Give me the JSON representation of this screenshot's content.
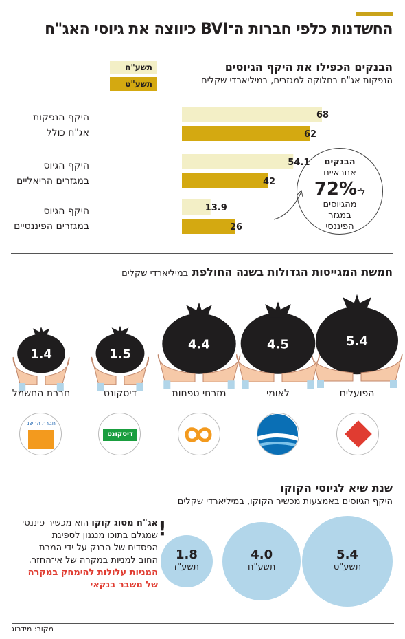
{
  "title": "החשדנות כלפי חברות ה־BVI כיווצה את גיוסי האג\"ח",
  "section1": {
    "title": "הבנקים הכפילו את היקף הגיוסים",
    "subtitle": "הנפקות אג\"ח בחלוקה למגזרים, במיליארדי שקלים",
    "legend": [
      {
        "label": "תשע\"ח",
        "color": "#f3efc6"
      },
      {
        "label": "תשע\"ט",
        "color": "#d4a911"
      }
    ],
    "categories": [
      {
        "line1": "היקף הנפקות",
        "line2": "אג\"ח כולל"
      },
      {
        "line1": "היקף הגיוס",
        "line2": "במגזרים הריאליים"
      },
      {
        "line1": "היקף הגיוס",
        "line2": "במגזרים הפיננסיים"
      }
    ],
    "callout": {
      "line1": "הבנקים",
      "line2": "אחראיים",
      "line3": "ל־",
      "value": "72%",
      "line4": "מהגיוסים",
      "line5": "במגזר",
      "line6": "הפיננסי"
    }
  },
  "section2": {
    "title": "חמשת המגייסות הגדולות בשנה החולפת",
    "subtitle": "במיליארדי שקלים",
    "banks": [
      {
        "value": "5.4",
        "name": "הפועלים"
      },
      {
        "value": "4.5",
        "name": "לאומי"
      },
      {
        "value": "4.4",
        "name": "מזרחי טפחות"
      },
      {
        "value": "1.5",
        "name": "דיסקונט"
      },
      {
        "value": "1.4",
        "name": "חברת החשמל"
      }
    ],
    "logos": {
      "discount_text": "דיסקונט",
      "iec_text": "חברת החשמל"
    }
  },
  "section3": {
    "title": "שנת שיא לגיוסי הקוקו",
    "subtitle": "היקף הגיוסים באמצעות מכשיר הקוקו, במיליארדי שקלים",
    "circles": [
      {
        "value": "5.4",
        "year": "תשע\"ט"
      },
      {
        "value": "4.0",
        "year": "תשע\"ח"
      },
      {
        "value": "1.8",
        "year": "תשע\"ז"
      }
    ],
    "note_bold": "אג\"ח מסוג קוקו",
    "note_body": "הוא מכשיר פיננסי שמגלם בתוכו מנגנון לספיגת הפסדים של הבנק על ידי המרת החוב למניות במקרה של אי־החזר.",
    "note_red": "המניות עלולות להימחק במקרה של משבר בנקאי",
    "exclaim": "!"
  },
  "source": "מקור: מידרוג",
  "chart_data": [
    {
      "type": "bar",
      "orientation": "horizontal",
      "title": "הבנקים הכפילו את היקף הגיוסים",
      "subtitle": "הנפקות אג\"ח בחלוקה למגזרים, במיליארדי שקלים",
      "categories": [
        "היקף הנפקות אג\"ח כולל",
        "היקף הגיוס במגזרים הריאליים",
        "היקף הגיוס במגזרים הפיננסיים"
      ],
      "series": [
        {
          "name": "תשע\"ח",
          "color": "#f3efc6",
          "values": [
            68,
            54.1,
            13.9
          ]
        },
        {
          "name": "תשע\"ט",
          "color": "#d4a911",
          "values": [
            62,
            42,
            26
          ]
        }
      ],
      "xlim": [
        0,
        70
      ],
      "grid": false,
      "legend": "top-left"
    },
    {
      "type": "bar",
      "title": "חמשת המגייסות הגדולות בשנה החולפת",
      "subtitle": "במיליארדי שקלים",
      "categories": [
        "הפועלים",
        "לאומי",
        "מזרחי טפחות",
        "דיסקונט",
        "חברת החשמל"
      ],
      "values": [
        5.4,
        4.5,
        4.4,
        1.5,
        1.4
      ]
    },
    {
      "type": "bar",
      "title": "שנת שיא לגיוסי הקוקו",
      "subtitle": "היקף הגיוסים באמצעות מכשיר הקוקו, במיליארדי שקלים",
      "categories": [
        "תשע\"ט",
        "תשע\"ח",
        "תשע\"ז"
      ],
      "values": [
        5.4,
        4.0,
        1.8
      ]
    }
  ]
}
